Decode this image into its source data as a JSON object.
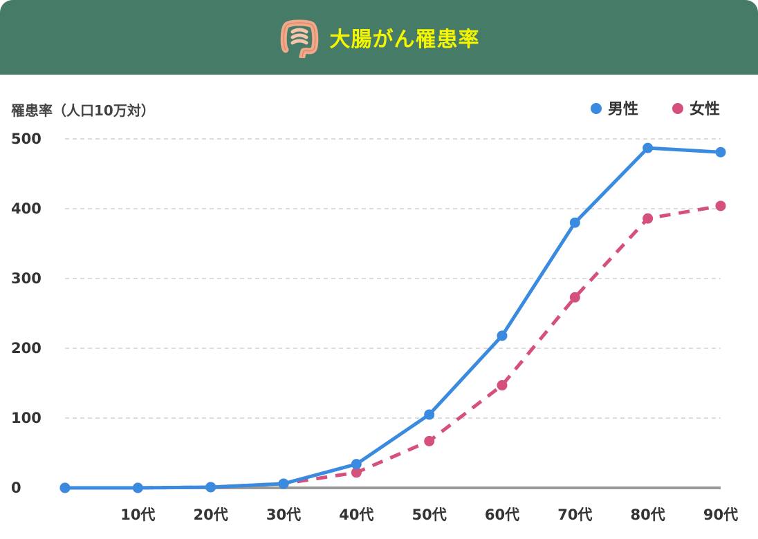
{
  "colors": {
    "header_bg": "#467c67",
    "title_text": "#f5f500",
    "male": "#3a8be0",
    "female": "#d6507e",
    "grid": "#d0d0d0",
    "axis": "#999999"
  },
  "header": {
    "title": "大腸がん罹患率",
    "icon": "large-intestine-icon"
  },
  "chart_data": {
    "type": "line",
    "ylabel": "罹患率（人口10万対）",
    "ylim": [
      0,
      500
    ],
    "yticks": [
      "0",
      "100",
      "200",
      "300",
      "400",
      "500"
    ],
    "categories": [
      "",
      "10代",
      "20代",
      "30代",
      "40代",
      "50代",
      "60代",
      "70代",
      "80代",
      "90代"
    ],
    "grid": "horizontal dashed",
    "legend_position": "top-right",
    "series": [
      {
        "name": "男性",
        "style": "solid",
        "values": [
          0,
          0,
          1,
          6,
          34,
          105,
          218,
          380,
          487,
          481
        ]
      },
      {
        "name": "女性",
        "style": "dashed",
        "values": [
          0,
          0,
          1,
          6,
          22,
          67,
          147,
          273,
          386,
          404
        ]
      }
    ]
  }
}
